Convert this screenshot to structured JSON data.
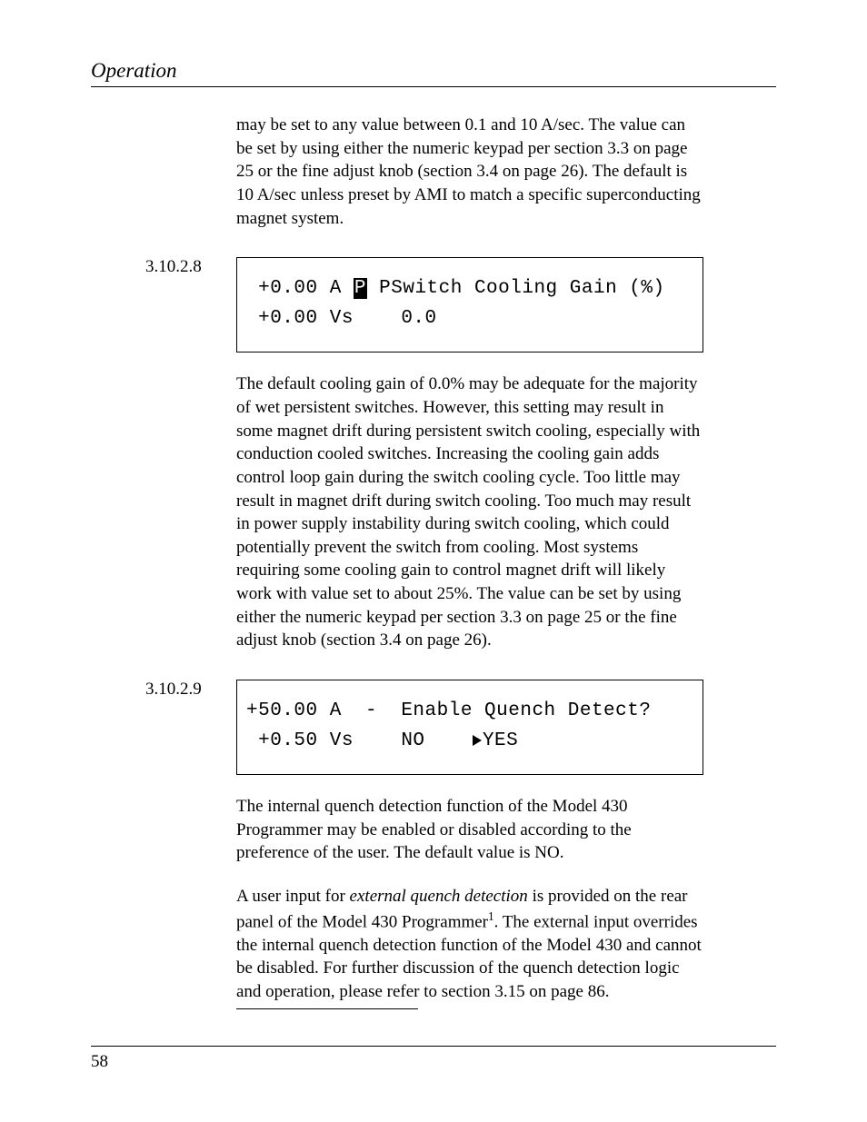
{
  "header": {
    "label": "Operation"
  },
  "para_intro": "may be set to any value between 0.1 and 10 A/sec. The value can be set by using either the numeric keypad per section 3.3 on page 25 or the fine adjust knob (section 3.4 on page 26). The default is 10 A/sec unless preset by AMI to match a specific superconducting magnet system.",
  "sec1": {
    "num": "3.10.2.8",
    "lcd": {
      "line1_left": " +0.00 A ",
      "line1_badge": "P",
      "line1_right": " PSwitch Cooling Gain (%)",
      "line2": " +0.00 Vs    0.0"
    },
    "para": "The default cooling gain of 0.0% may be adequate for the majority of wet persistent switches. However, this setting may result in some magnet drift during persistent switch cooling, especially with conduction cooled switches. Increasing the cooling gain adds control loop gain during the switch cooling cycle. Too little may result in magnet drift during switch cooling. Too much may result in power supply instability during switch cooling, which could potentially prevent the switch from cooling. Most systems requiring some cooling gain to control magnet drift will likely work with value set to about 25%. The value can be set by using either the numeric keypad per section 3.3 on page 25 or the fine adjust knob (section 3.4 on page 26)."
  },
  "sec2": {
    "num": "3.10.2.9",
    "lcd": {
      "line1": "+50.00 A  -  Enable Quench Detect?",
      "line2_left": " +0.50 Vs    NO    ",
      "line2_yes": "YES"
    },
    "para1": "The internal quench detection function of the Model 430 Programmer may be enabled or disabled according to the preference of the user. The default value is NO.",
    "para2_a": "A user input for ",
    "para2_em": "external quench detection",
    "para2_b": " is provided on the rear panel of the Model 430 Programmer",
    "para2_sup": "1",
    "para2_c": ". The external input overrides the internal quench detection function of the Model 430 and cannot be disabled. For further discussion of the quench detection logic and operation, please refer to section 3.15 on page 86."
  },
  "footer": {
    "pagenum": "58"
  }
}
